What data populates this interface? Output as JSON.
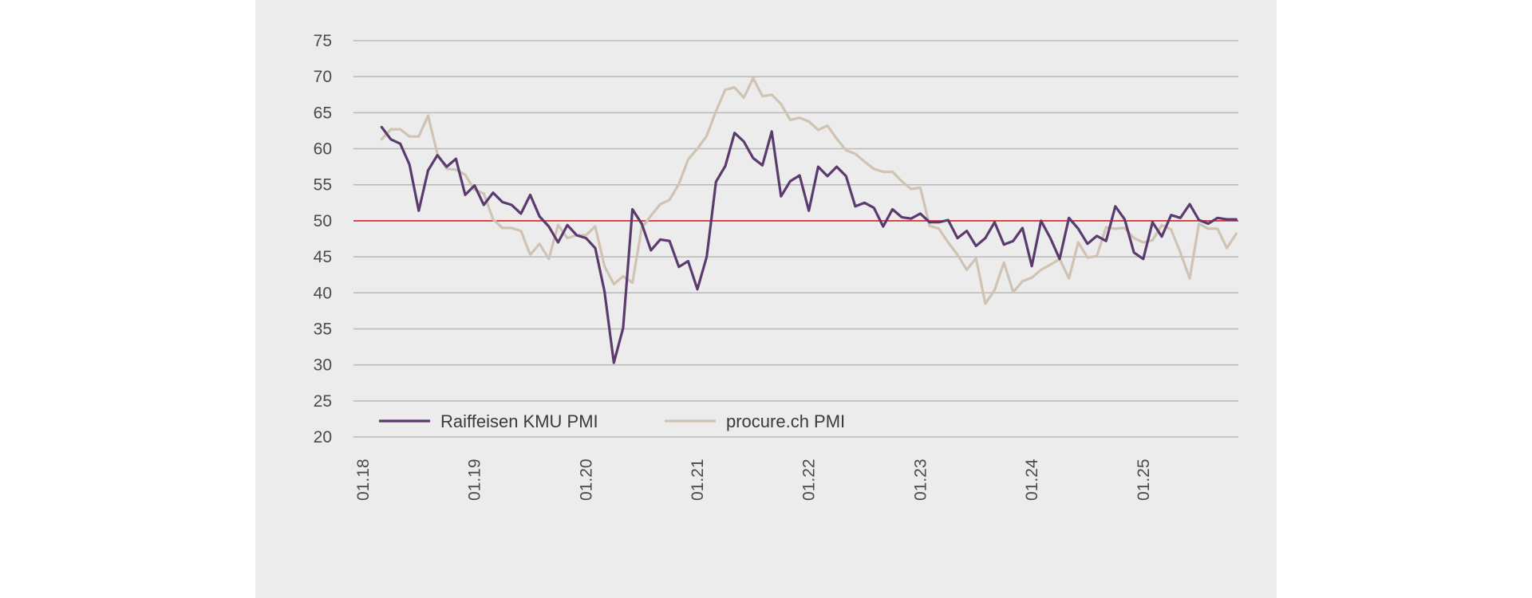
{
  "chart_data": {
    "type": "line",
    "ylim": [
      20,
      75
    ],
    "yticks": [
      20,
      25,
      30,
      35,
      40,
      45,
      50,
      55,
      60,
      65,
      70,
      75
    ],
    "x_axis": {
      "type": "date",
      "format": "MM.YY",
      "start": "2018-01",
      "end": "2025-12"
    },
    "xtick_labels": [
      "01.18",
      "01.19",
      "01.20",
      "01.21",
      "01.22",
      "01.23",
      "01.24",
      "01.25"
    ],
    "reference_line": {
      "value": 50,
      "color": "#d7282f"
    },
    "grid": true,
    "legend": {
      "placement": "bottom-left"
    },
    "series": [
      {
        "name": "Raiffeisen KMU PMI",
        "color": "#5b3a6e",
        "start": "2018-03",
        "values": [
          63.0,
          61.3,
          60.7,
          57.8,
          51.4,
          57.0,
          59.1,
          57.5,
          58.6,
          53.6,
          54.9,
          52.2,
          53.9,
          52.6,
          52.2,
          51.0,
          53.6,
          50.6,
          49.2,
          47.0,
          49.4,
          48.0,
          47.6,
          46.2,
          40.2,
          30.3,
          35.1,
          51.6,
          49.6,
          45.9,
          47.4,
          47.2,
          43.6,
          44.4,
          40.5,
          45.0,
          55.4,
          57.6,
          62.2,
          61.0,
          58.7,
          57.7,
          62.4,
          53.4,
          55.5,
          56.3,
          51.4,
          57.5,
          56.2,
          57.5,
          56.2,
          52.0,
          52.5,
          51.8,
          49.2,
          51.6,
          50.5,
          50.3,
          51.0,
          49.8,
          49.8,
          50.1,
          47.6,
          48.6,
          46.5,
          47.6,
          49.8,
          46.7,
          47.2,
          49.0,
          43.7,
          50.0,
          47.6,
          44.7,
          50.4,
          48.9,
          46.8,
          47.9,
          47.2,
          52.0,
          50.2,
          45.6,
          44.7,
          49.8,
          47.8,
          50.8,
          50.4,
          52.3,
          50.1,
          49.6,
          50.4,
          50.2,
          50.2
        ]
      },
      {
        "name": "procure.ch PMI",
        "color": "#d0c3b3",
        "start": "2018-03",
        "values": [
          61.3,
          62.7,
          62.7,
          61.7,
          61.7,
          64.6,
          59.3,
          57.2,
          57.1,
          56.4,
          54.3,
          53.8,
          50.2,
          49.0,
          49.0,
          48.6,
          45.3,
          46.8,
          44.7,
          49.4,
          47.6,
          48.0,
          48.0,
          49.2,
          43.7,
          41.2,
          42.3,
          41.4,
          49.0,
          50.7,
          52.3,
          52.9,
          55.1,
          58.5,
          60.0,
          61.8,
          65.2,
          68.2,
          68.5,
          67.1,
          69.8,
          67.3,
          67.5,
          66.2,
          64.0,
          64.3,
          63.8,
          62.6,
          63.2,
          61.4,
          59.8,
          59.3,
          58.2,
          57.2,
          56.8,
          56.8,
          55.5,
          54.4,
          54.6,
          49.3,
          48.9,
          47.0,
          45.3,
          43.2,
          44.8,
          38.5,
          40.4,
          44.2,
          40.1,
          41.6,
          42.1,
          43.2,
          43.9,
          44.7,
          42.0,
          47.0,
          44.9,
          45.1,
          49.1,
          48.9,
          49.0,
          47.6,
          47.0,
          47.3,
          49.4,
          48.8,
          45.6,
          42.0,
          49.6,
          48.9,
          48.9,
          46.2,
          48.2
        ]
      }
    ]
  }
}
